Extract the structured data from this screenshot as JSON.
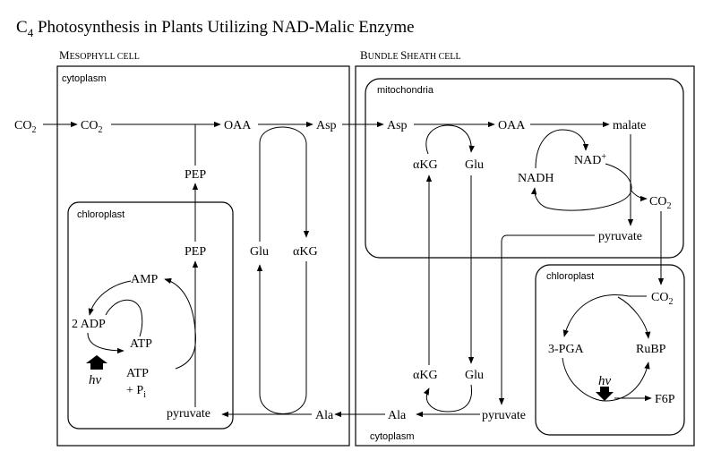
{
  "title": {
    "main": "C",
    "sub": "4",
    "rest": " Photosynthesis in Plants Utilizing NAD-Malic Enzyme"
  },
  "headers": {
    "mesophyll": {
      "cap1": "M",
      "small1": "ESOPHYLL CELL"
    },
    "bundle_sheath": {
      "cap1": "B",
      "small1": "UNDLE ",
      "cap2": "S",
      "small2": "HEATH CELL"
    }
  },
  "compartments": {
    "meso_cytoplasm": "cytoplasm",
    "meso_chloroplast": "chloroplast",
    "bs_mitochondria": "mitochondria",
    "bs_chloroplast": "chloroplast",
    "bs_cytoplasm": "cytoplasm"
  },
  "metabolites": {
    "co2_in": "CO",
    "co2_in_sub": "2",
    "co2_meso": "CO",
    "co2_meso_sub": "2",
    "oaa_meso": "OAA",
    "asp_meso": "Asp",
    "pep_top": "PEP",
    "pep_chl": "PEP",
    "glu_meso": "Glu",
    "akg_meso": "αKG",
    "amp": "AMP",
    "adp": "2 ADP",
    "atp": "ATP",
    "atp2": "ATP",
    "pi": "+ P",
    "pi_sub": "i",
    "hv_meso": "hν",
    "pyruvate_meso": "pyruvate",
    "ala_meso": "Ala",
    "asp_mito": "Asp",
    "oaa_mito": "OAA",
    "malate": "malate",
    "akg_mito": "αKG",
    "glu_mito": "Glu",
    "nad": "NAD",
    "nad_sup": "+",
    "nadh": "NADH",
    "co2_mito": "CO",
    "co2_mito_sub": "2",
    "pyruvate_mito": "pyruvate",
    "co2_chl": "CO",
    "co2_chl_sub": "2",
    "pga": "3-PGA",
    "rubp": "RuBP",
    "hv_bs": "hν",
    "f6p": "F6P",
    "akg_bs": "αKG",
    "glu_bs": "Glu",
    "pyruvate_bs": "pyruvate",
    "ala_bs": "Ala"
  }
}
